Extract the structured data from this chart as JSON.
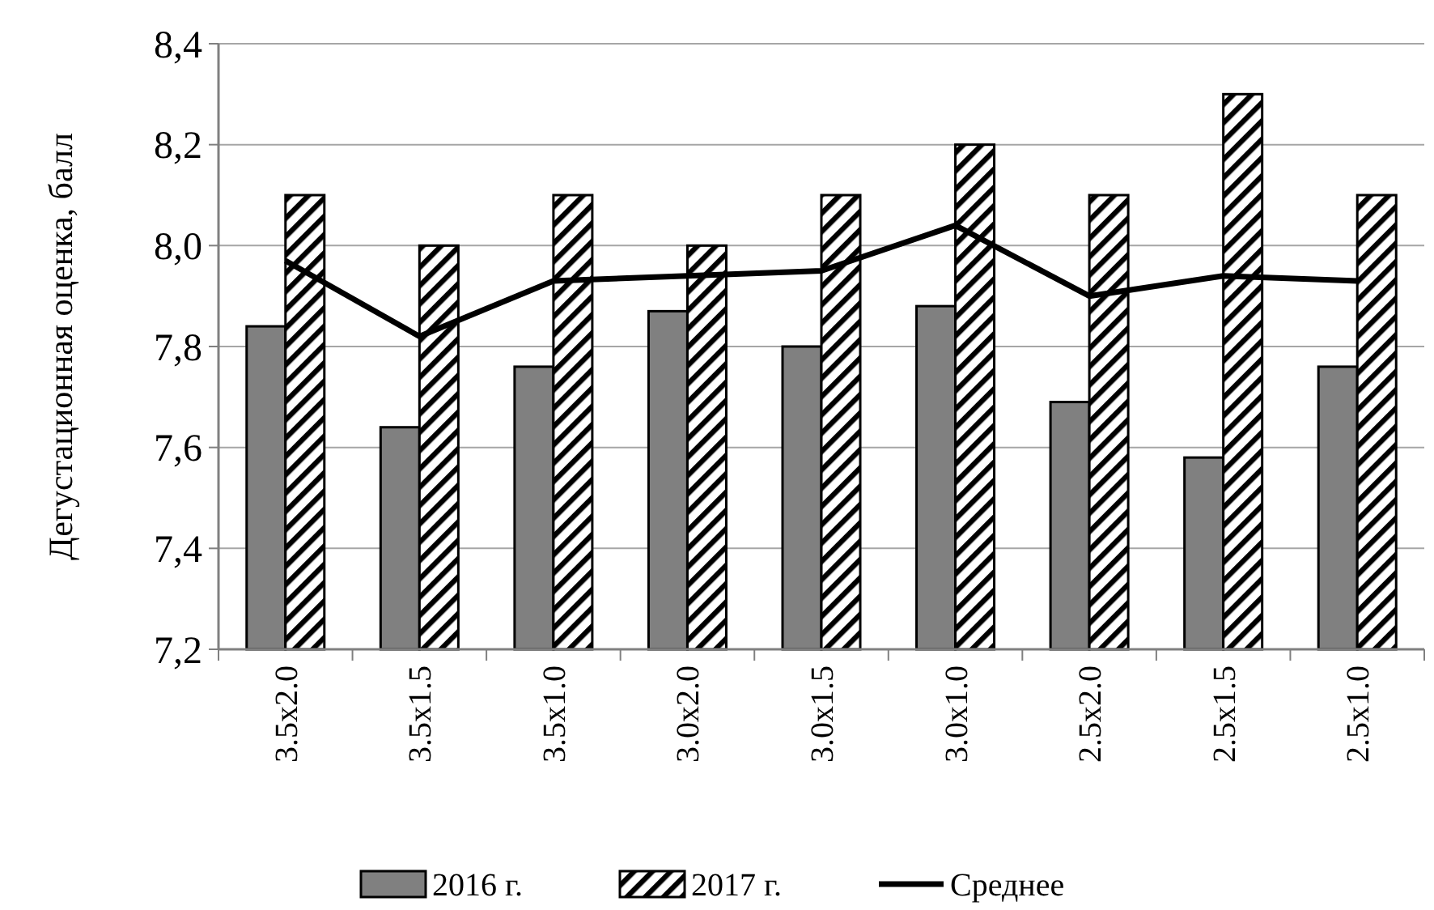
{
  "chart_data": {
    "type": "bar",
    "ylabel": "Дегустационная оценка, балл",
    "categories": [
      "3.5x2.0",
      "3.5x1.5",
      "3.5x1.0",
      "3.0x2.0",
      "3.0x1.5",
      "3.0x1.0",
      "2.5x2.0",
      "2.5x1.5",
      "2.5x1.0"
    ],
    "series": [
      {
        "name": "2016 г.",
        "color": "#808080",
        "values": [
          7.84,
          7.64,
          7.76,
          7.87,
          7.8,
          7.88,
          7.69,
          7.58,
          7.76
        ]
      },
      {
        "name": "2017 г.",
        "color": "#000000",
        "values": [
          8.1,
          8.0,
          8.1,
          8.0,
          8.1,
          8.2,
          8.1,
          8.3,
          8.1
        ]
      },
      {
        "name": "Среднее",
        "type": "line",
        "color": "#000000",
        "values": [
          7.97,
          7.82,
          7.93,
          7.94,
          7.95,
          8.04,
          7.9,
          7.94,
          7.93
        ]
      }
    ],
    "ylim": [
      7.2,
      8.4
    ],
    "yticks": [
      {
        "value": 7.2,
        "label": "7,2"
      },
      {
        "value": 7.4,
        "label": "7,4"
      },
      {
        "value": 7.6,
        "label": "7,6"
      },
      {
        "value": 7.8,
        "label": "7,8"
      },
      {
        "value": 8.0,
        "label": "8,0"
      },
      {
        "value": 8.2,
        "label": "8,2"
      },
      {
        "value": 8.4,
        "label": "8,4"
      }
    ],
    "grid": "y",
    "legend": "bottom",
    "marker": "none",
    "line_style": "solid"
  }
}
